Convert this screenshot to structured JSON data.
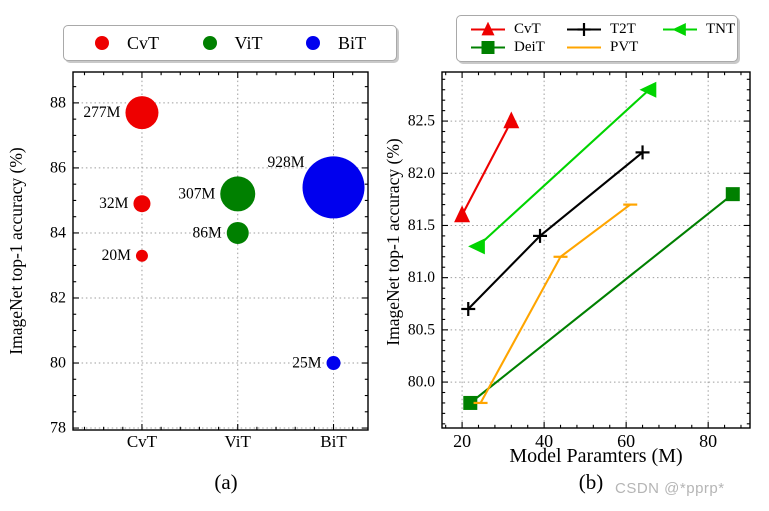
{
  "figure": {
    "watermark": "CSDN @*pprp*"
  },
  "chart_data": [
    {
      "id": "a",
      "type": "scatter",
      "subtype": "bubble",
      "caption": "(a)",
      "title": "",
      "xlabel": "",
      "ylabel": "ImageNet top-1 accuracy (%)",
      "categories": [
        "CvT",
        "ViT",
        "BiT"
      ],
      "yticks": [
        78,
        80,
        82,
        84,
        86,
        88
      ],
      "ylim": [
        77.94,
        88.95
      ],
      "xlim": [
        0.28,
        3.36
      ],
      "grid": true,
      "legend_position": "above",
      "legend_items": [
        {
          "label": "CvT",
          "color": "#ee0000",
          "marker": "circle"
        },
        {
          "label": "ViT",
          "color": "#008000",
          "marker": "circle"
        },
        {
          "label": "BiT",
          "color": "#0000ee",
          "marker": "circle"
        }
      ],
      "points": [
        {
          "category": "CvT",
          "x": 1,
          "y": 83.3,
          "params_label": "20M",
          "params_M": 20,
          "color": "#ee0000",
          "r": 6,
          "label_pos": "left"
        },
        {
          "category": "CvT",
          "x": 1,
          "y": 84.9,
          "params_label": "32M",
          "params_M": 32,
          "color": "#ee0000",
          "r": 8.5,
          "label_pos": "left"
        },
        {
          "category": "CvT",
          "x": 1,
          "y": 87.7,
          "params_label": "277M",
          "params_M": 277,
          "color": "#ee0000",
          "r": 16.5,
          "label_pos": "left"
        },
        {
          "category": "ViT",
          "x": 2,
          "y": 84.0,
          "params_label": "86M",
          "params_M": 86,
          "color": "#008000",
          "r": 11,
          "label_pos": "left"
        },
        {
          "category": "ViT",
          "x": 2,
          "y": 85.2,
          "params_label": "307M",
          "params_M": 307,
          "color": "#008000",
          "r": 17.5,
          "label_pos": "left"
        },
        {
          "category": "BiT",
          "x": 3,
          "y": 80.0,
          "params_label": "25M",
          "params_M": 25,
          "color": "#0000ee",
          "r": 7,
          "label_pos": "left"
        },
        {
          "category": "BiT",
          "x": 3,
          "y": 85.4,
          "params_label": "928M",
          "params_M": 928,
          "color": "#0000ee",
          "r": 31,
          "label_pos": "upper-left"
        }
      ]
    },
    {
      "id": "b",
      "type": "line",
      "caption": "(b)",
      "title": "",
      "xlabel": "Model Paramters (M)",
      "ylabel": "ImageNet top-1 accuracy (%)",
      "xticks": [
        20,
        40,
        60,
        80
      ],
      "yticks": [
        80.0,
        80.5,
        81.0,
        81.5,
        82.0,
        82.5
      ],
      "xlim": [
        15.1,
        90.2
      ],
      "ylim": [
        79.56,
        82.97
      ],
      "grid": true,
      "legend_position": "above",
      "legend_rows": [
        [
          "CvT",
          "T2T",
          "TNT"
        ],
        [
          "DeiT",
          "PVT"
        ]
      ],
      "series": [
        {
          "name": "DeiT",
          "color": "#008000",
          "marker": "square",
          "x": [
            22,
            86
          ],
          "y": [
            79.8,
            81.8
          ]
        },
        {
          "name": "PVT",
          "color": "#ffa500",
          "marker": "hline",
          "x": [
            24.5,
            44,
            61
          ],
          "y": [
            79.8,
            81.2,
            81.7
          ]
        },
        {
          "name": "T2T",
          "color": "#000000",
          "marker": "plus",
          "x": [
            21.5,
            39,
            64
          ],
          "y": [
            80.7,
            81.4,
            82.2
          ]
        },
        {
          "name": "TNT",
          "color": "#00d400",
          "marker": "triangle-left",
          "x": [
            23.8,
            65.6
          ],
          "y": [
            81.3,
            82.8
          ]
        },
        {
          "name": "CvT",
          "color": "#ee0000",
          "marker": "triangle-up",
          "x": [
            20,
            32
          ],
          "y": [
            81.6,
            82.5
          ]
        }
      ]
    }
  ]
}
